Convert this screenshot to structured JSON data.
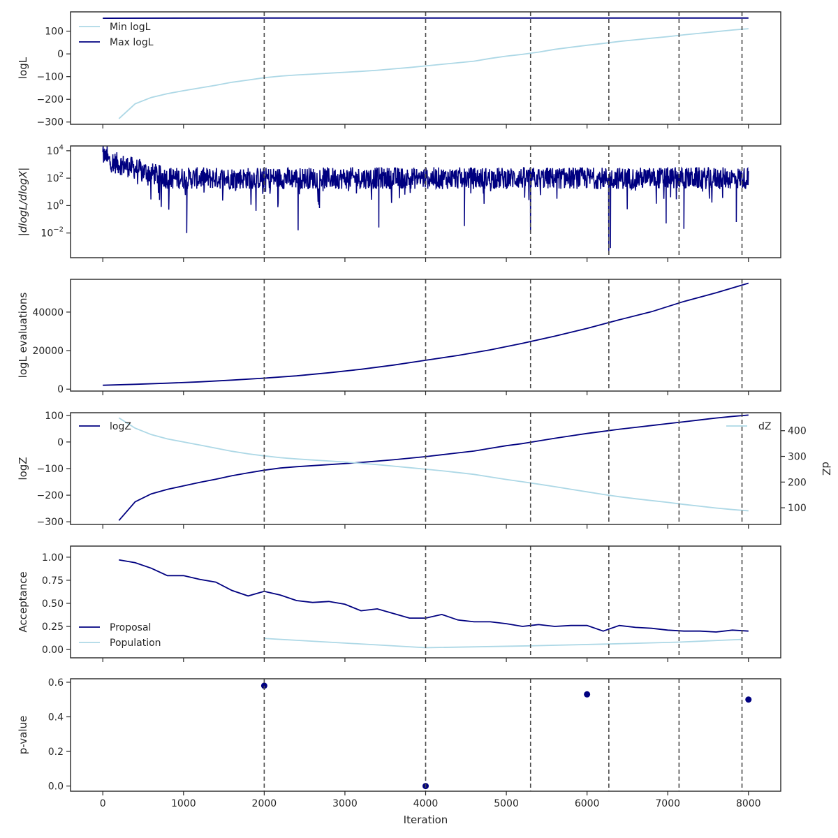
{
  "colors": {
    "dark": "#000080",
    "light": "#add8e6",
    "vline": "#4a4a4a",
    "frame": "#262626"
  },
  "chart_data": {
    "type": "line",
    "x_shared": {
      "xlabel": "Iteration",
      "xlim": [
        -400,
        8400
      ],
      "xticks": [
        0,
        1000,
        2000,
        3000,
        4000,
        5000,
        6000,
        7000,
        8000
      ],
      "xtick_labels": [
        "0",
        "1000",
        "2000",
        "3000",
        "4000",
        "5000",
        "6000",
        "7000",
        "8000"
      ]
    },
    "vlines": [
      2000,
      4000,
      5300,
      6270,
      7140,
      7920
    ],
    "panels": [
      {
        "id": "logl",
        "ylabel": "logL",
        "ylim": [
          -310,
          185
        ],
        "yticks": [
          -300,
          -200,
          -100,
          0,
          100
        ],
        "ytick_labels": [
          "−300",
          "−200",
          "−100",
          "0",
          "100"
        ],
        "legend": "top-left",
        "series": [
          {
            "name": "Min logL",
            "color": "light",
            "x": [
              200,
              400,
              600,
              800,
              1000,
              1200,
              1400,
              1600,
              1800,
              2000,
              2200,
              2400,
              2600,
              2800,
              3000,
              3200,
              3400,
              3600,
              3800,
              4000,
              4200,
              4400,
              4600,
              4800,
              5000,
              5200,
              5400,
              5600,
              5800,
              6000,
              6200,
              6400,
              6600,
              6800,
              7000,
              7200,
              7400,
              7600,
              7800,
              8000
            ],
            "y": [
              -285,
              -220,
              -192,
              -175,
              -162,
              -150,
              -138,
              -125,
              -115,
              -105,
              -98,
              -93,
              -89,
              -85,
              -81,
              -77,
              -72,
              -66,
              -60,
              -53,
              -46,
              -39,
              -32,
              -20,
              -10,
              -2,
              8,
              20,
              29,
              38,
              46,
              55,
              62,
              69,
              76,
              84,
              91,
              98,
              105,
              111
            ]
          },
          {
            "name": "Max logL",
            "color": "dark",
            "x": [
              0,
              2000,
              4000,
              6000,
              8000
            ],
            "y": [
              157,
              158,
              158,
              158,
              158
            ]
          }
        ]
      },
      {
        "id": "dlogl",
        "ylabel": "|dlogL/dlogX|",
        "yscale": "log",
        "ylim_log10": [
          -3.8,
          4.35
        ],
        "yticks_log10": [
          -2,
          0,
          2,
          4
        ],
        "ytick_labels": [
          "10",
          "10",
          "10",
          "10"
        ],
        "ytick_exponents": [
          "−2",
          "0",
          "2",
          "4"
        ],
        "series": [
          {
            "name": "",
            "color": "dark",
            "kind": "noisy",
            "x_range": [
              0,
              8000
            ],
            "envelope": {
              "base_log10": [
                3.4,
                2.0,
                2.0,
                2.0
              ],
              "base_x": [
                0,
                800,
                4000,
                8000
              ]
            },
            "dips": [
              {
                "x": 1040,
                "log10": -2.0
              },
              {
                "x": 5300,
                "log10": -2.0
              },
              {
                "x": 6270,
                "log10": -3.3
              },
              {
                "x": 6290,
                "log10": -3.1
              },
              {
                "x": 2420,
                "log10": -1.8
              },
              {
                "x": 3420,
                "log10": -1.6
              },
              {
                "x": 4480,
                "log10": -1.5
              },
              {
                "x": 6980,
                "log10": -1.3
              },
              {
                "x": 7200,
                "log10": -1.7
              },
              {
                "x": 7850,
                "log10": -1.2
              }
            ]
          }
        ]
      },
      {
        "id": "evals",
        "ylabel": "logL evaluations",
        "ylim": [
          -1000,
          57000
        ],
        "yticks": [
          0,
          20000,
          40000
        ],
        "ytick_labels": [
          "0",
          "20000",
          "40000"
        ],
        "series": [
          {
            "name": "",
            "color": "dark",
            "x": [
              0,
              400,
              800,
              1200,
              1600,
              2000,
              2400,
              2800,
              3200,
              3600,
              4000,
              4400,
              4800,
              5200,
              5600,
              6000,
              6400,
              6800,
              7200,
              7600,
              8000
            ],
            "y": [
              2000,
              2500,
              3100,
              3800,
              4700,
              5700,
              6900,
              8500,
              10300,
              12500,
              15000,
              17500,
              20400,
              23800,
              27500,
              31500,
              36000,
              40200,
              45500,
              50000,
              55000
            ]
          }
        ]
      },
      {
        "id": "logz",
        "ylabel": "logZ",
        "ylim": [
          -310,
          110
        ],
        "yticks": [
          -300,
          -200,
          -100,
          0,
          100
        ],
        "ytick_labels": [
          "−300",
          "−200",
          "−100",
          "0",
          "100"
        ],
        "ylabel_right": "dZ",
        "ylim_right": [
          35,
          470
        ],
        "yticks_right": [
          100,
          200,
          300,
          400
        ],
        "ytick_labels_right": [
          "100",
          "200",
          "300",
          "400"
        ],
        "legend_left": "top-left",
        "legend_right": "top-right",
        "series": [
          {
            "name": "logZ",
            "color": "dark",
            "axis": "left",
            "x": [
              200,
              400,
              600,
              800,
              1000,
              1200,
              1400,
              1600,
              1800,
              2000,
              2200,
              2400,
              2600,
              2800,
              3000,
              3200,
              3400,
              3600,
              3800,
              4000,
              4200,
              4400,
              4600,
              4800,
              5000,
              5200,
              5400,
              5600,
              5800,
              6000,
              6200,
              6400,
              6600,
              6800,
              7000,
              7200,
              7400,
              7600,
              7800,
              8000
            ],
            "y": [
              -295,
              -225,
              -195,
              -178,
              -165,
              -152,
              -140,
              -127,
              -116,
              -106,
              -98,
              -93,
              -89,
              -85,
              -81,
              -77,
              -72,
              -67,
              -61,
              -55,
              -48,
              -41,
              -34,
              -24,
              -14,
              -6,
              4,
              14,
              23,
              32,
              40,
              48,
              55,
              62,
              69,
              76,
              83,
              90,
              96,
              101
            ]
          },
          {
            "name": "dZ",
            "color": "light",
            "axis": "right",
            "x": [
              200,
              400,
              600,
              800,
              1000,
              1200,
              1400,
              1600,
              1800,
              2000,
              2200,
              2400,
              2600,
              2800,
              3000,
              3200,
              3400,
              3600,
              3800,
              4000,
              4200,
              4400,
              4600,
              4800,
              5000,
              5200,
              5400,
              5600,
              5800,
              6000,
              6200,
              6400,
              6600,
              6800,
              7000,
              7200,
              7400,
              7600,
              7800,
              8000
            ],
            "y": [
              450,
              410,
              385,
              368,
              356,
              344,
              332,
              320,
              310,
              302,
              295,
              290,
              286,
              282,
              278,
              273,
              268,
              262,
              256,
              250,
              244,
              237,
              230,
              220,
              210,
              201,
              192,
              182,
              172,
              162,
              152,
              143,
              135,
              128,
              121,
              113,
              106,
              99,
              93,
              88
            ]
          }
        ]
      },
      {
        "id": "acceptance",
        "ylabel": "Acceptance",
        "ylim": [
          -0.09,
          1.12
        ],
        "yticks": [
          0.0,
          0.25,
          0.5,
          0.75,
          1.0
        ],
        "ytick_labels": [
          "0.00",
          "0.25",
          "0.50",
          "0.75",
          "1.00"
        ],
        "legend": "lower-left",
        "series": [
          {
            "name": "Proposal",
            "color": "dark",
            "x": [
              200,
              400,
              600,
              800,
              1000,
              1200,
              1400,
              1600,
              1800,
              2000,
              2200,
              2400,
              2600,
              2800,
              3000,
              3200,
              3400,
              3600,
              3800,
              4000,
              4200,
              4400,
              4600,
              4800,
              5000,
              5200,
              5400,
              5600,
              5800,
              6000,
              6200,
              6400,
              6600,
              6800,
              7000,
              7200,
              7400,
              7600,
              7800,
              8000
            ],
            "y": [
              0.97,
              0.94,
              0.88,
              0.8,
              0.8,
              0.76,
              0.73,
              0.64,
              0.58,
              0.63,
              0.59,
              0.53,
              0.51,
              0.52,
              0.49,
              0.42,
              0.44,
              0.39,
              0.34,
              0.34,
              0.38,
              0.32,
              0.3,
              0.3,
              0.28,
              0.25,
              0.27,
              0.25,
              0.26,
              0.26,
              0.2,
              0.26,
              0.24,
              0.23,
              0.21,
              0.2,
              0.2,
              0.19,
              0.21,
              0.2
            ]
          },
          {
            "name": "Population",
            "color": "light",
            "x": [
              2000,
              4000,
              5300,
              6270,
              7140,
              7920
            ],
            "y": [
              0.12,
              0.02,
              0.04,
              0.06,
              0.08,
              0.11
            ]
          }
        ]
      },
      {
        "id": "pvalue",
        "ylabel": "p-value",
        "ylim": [
          -0.03,
          0.62
        ],
        "yticks": [
          0.0,
          0.2,
          0.4,
          0.6
        ],
        "ytick_labels": [
          "0.0",
          "0.2",
          "0.4",
          "0.6"
        ],
        "series": [
          {
            "name": "",
            "color": "dark",
            "kind": "scatter",
            "x": [
              2000,
              4000,
              6000,
              8000
            ],
            "y": [
              0.58,
              0.0,
              0.53,
              0.5
            ]
          }
        ]
      }
    ]
  }
}
